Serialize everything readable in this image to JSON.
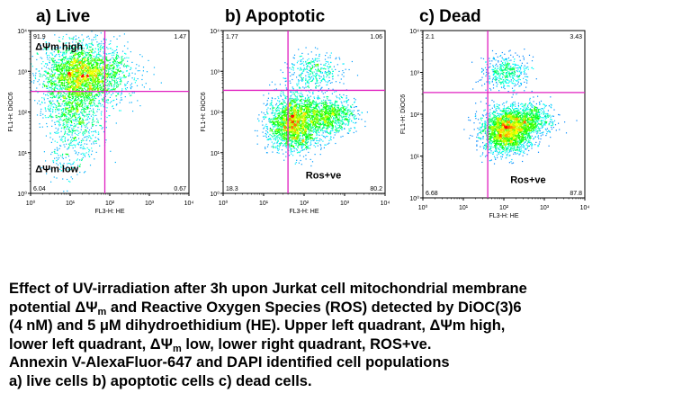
{
  "chart_data": [
    {
      "type": "scatter",
      "panel_label": "a) Live",
      "xlabel": "FL3-H: HE",
      "ylabel": "FL1-H: DiOC6",
      "xlim": [
        1,
        10000
      ],
      "ylim": [
        1,
        10000
      ],
      "x_scale": "log",
      "y_scale": "log",
      "x_ticks": [
        "10⁰",
        "10¹",
        "10²",
        "10³",
        "10⁴"
      ],
      "y_ticks": [
        "10⁰",
        "10¹",
        "10²",
        "10³",
        "10⁴"
      ],
      "gate": {
        "x": 75,
        "y": 320
      },
      "quadrant_percent": {
        "upper_left": "91.9",
        "upper_right": "1.47",
        "lower_left": "6.04",
        "lower_right": "0.67"
      },
      "annotations": [
        "ΔΨm high",
        "ΔΨm low"
      ],
      "populations": [
        {
          "x": 22,
          "y": 900,
          "sx": 0.55,
          "sy": 0.38,
          "n": 2600
        },
        {
          "x": 12,
          "y": 130,
          "sx": 0.35,
          "sy": 0.55,
          "n": 1000
        },
        {
          "x": 8,
          "y": 8,
          "sx": 0.3,
          "sy": 0.3,
          "n": 120
        }
      ]
    },
    {
      "type": "scatter",
      "panel_label": "b) Apoptotic",
      "xlabel": "FL3-H: HE",
      "ylabel": "FL1-H: DiOC6",
      "xlim": [
        1,
        10000
      ],
      "ylim": [
        1,
        10000
      ],
      "x_scale": "log",
      "y_scale": "log",
      "x_ticks": [
        "10⁰",
        "10¹",
        "10²",
        "10³",
        "10⁴"
      ],
      "y_ticks": [
        "10⁰",
        "10¹",
        "10²",
        "10³",
        "10⁴"
      ],
      "gate": {
        "x": 40,
        "y": 340
      },
      "quadrant_percent": {
        "upper_left": "1.77",
        "upper_right": "1.06",
        "lower_left": "18.3",
        "lower_right": "80.2"
      },
      "annotations": [
        "Ros+ve"
      ],
      "populations": [
        {
          "x": 55,
          "y": 55,
          "sx": 0.32,
          "sy": 0.35,
          "n": 2200
        },
        {
          "x": 400,
          "y": 85,
          "sx": 0.32,
          "sy": 0.22,
          "n": 900
        },
        {
          "x": 180,
          "y": 1000,
          "sx": 0.32,
          "sy": 0.25,
          "n": 350
        }
      ]
    },
    {
      "type": "scatter",
      "panel_label": "c) Dead",
      "xlabel": "FL3-H: HE",
      "ylabel": "FL1-H: DiOC6",
      "xlim": [
        1,
        10000
      ],
      "ylim": [
        1,
        10000
      ],
      "x_scale": "log",
      "y_scale": "log",
      "x_ticks": [
        "10⁰",
        "10¹",
        "10²",
        "10³",
        "10⁴"
      ],
      "y_ticks": [
        "10⁰",
        "10¹",
        "10²",
        "10³",
        "10⁴"
      ],
      "gate": {
        "x": 40,
        "y": 330
      },
      "quadrant_percent": {
        "upper_left": "2.1",
        "upper_right": "3.43",
        "lower_left": "6.68",
        "lower_right": "87.8"
      },
      "annotations": [
        "Ros+ve"
      ],
      "populations": [
        {
          "x": 110,
          "y": 40,
          "sx": 0.3,
          "sy": 0.25,
          "n": 2200
        },
        {
          "x": 400,
          "y": 75,
          "sx": 0.3,
          "sy": 0.2,
          "n": 800
        },
        {
          "x": 110,
          "y": 1000,
          "sx": 0.3,
          "sy": 0.22,
          "n": 450
        }
      ]
    }
  ],
  "caption": {
    "line1": "Effect of UV-irradiation after 3h upon Jurkat cell mitochondrial membrane",
    "line2_a": "potential ΔΨ",
    "line2_sub": "m",
    "line2_b": " and Reactive Oxygen Species (ROS) detected by DiOC(3)6",
    "line3": "(4 nM) and 5 μM dihydroethidium (HE). Upper left quadrant, ΔΨm high,",
    "line4_a": "lower left quadrant, ΔΨ",
    "line4_sub": "m",
    "line4_b": " low, lower right quadrant, ROS+ve.",
    "line5": "Annexin V-AlexaFluor-647 and DAPI identified cell populations",
    "line6": "a) live cells b) apoptotic cells c) dead cells."
  },
  "colors": {
    "gate_line": "#e020c0",
    "density_low": "#1c1cff",
    "density_high": "#ff1010"
  }
}
